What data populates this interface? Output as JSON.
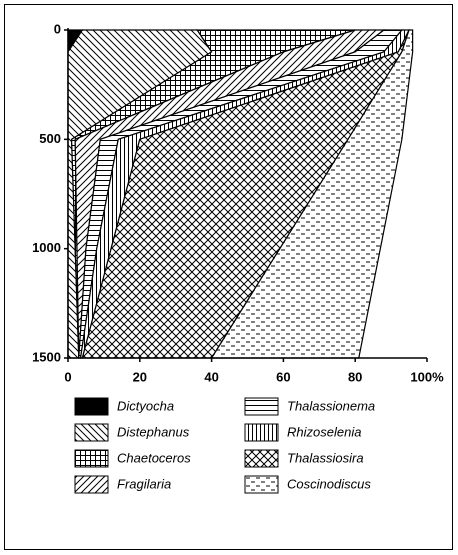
{
  "chart_data": {
    "type": "stacked-area-horizontal",
    "y": [
      0,
      100,
      500,
      1000,
      1500
    ],
    "ylim": [
      0,
      1500
    ],
    "yticks": [
      0,
      500,
      1000,
      1500
    ],
    "y_inverted": true,
    "xlim": [
      0,
      100
    ],
    "xticks": [
      0,
      20,
      40,
      60,
      80,
      {
        "value": 100,
        "label": "100%"
      }
    ],
    "series": [
      {
        "name": "Dictyocha",
        "pattern": "solid",
        "values": [
          4,
          0,
          0,
          0,
          0
        ]
      },
      {
        "name": "Distephanus",
        "pattern": "back-diagonal",
        "values": [
          32,
          40,
          1,
          2,
          3
        ]
      },
      {
        "name": "Chaetoceros",
        "pattern": "grid",
        "values": [
          44,
          20,
          1,
          0.5,
          0
        ]
      },
      {
        "name": "Fragilaria",
        "pattern": "diagonal",
        "values": [
          8,
          20,
          7,
          2.5,
          0
        ]
      },
      {
        "name": "Thalassionema",
        "pattern": "horizontal",
        "values": [
          5,
          8,
          5,
          3,
          0.5
        ]
      },
      {
        "name": "Rhizoselenia",
        "pattern": "vertical",
        "values": [
          2,
          4,
          6,
          4,
          0.5
        ]
      },
      {
        "name": "Thalassiosira",
        "pattern": "crosshatch",
        "values": [
          0,
          1,
          58,
          47,
          36
        ]
      },
      {
        "name": "Coscinodiscus",
        "pattern": "dashes",
        "values": [
          1,
          3,
          15,
          28,
          41
        ]
      }
    ]
  }
}
